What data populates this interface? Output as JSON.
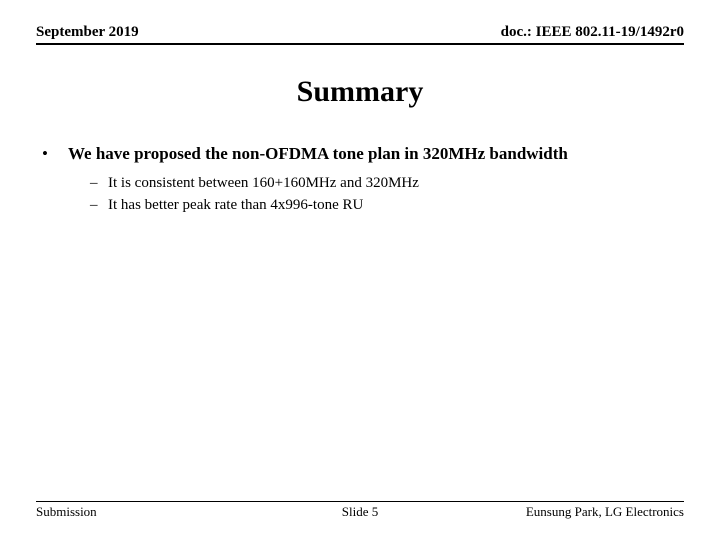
{
  "header": {
    "left": "September 2019",
    "right": "doc.: IEEE 802.11-19/1492r0"
  },
  "title": "Summary",
  "bullet": {
    "mark": "•",
    "text": "We have proposed the non-OFDMA tone plan in 320MHz bandwidth"
  },
  "subbullets": [
    {
      "mark": "–",
      "text": "It is consistent between 160+160MHz and 320MHz"
    },
    {
      "mark": "–",
      "text": "It has better peak rate than 4x996-tone RU"
    }
  ],
  "footer": {
    "left": "Submission",
    "center": "Slide 5",
    "right": "Eunsung Park, LG Electronics"
  },
  "colors": {
    "text": "#000000",
    "background": "#ffffff",
    "rule": "#000000"
  },
  "typography": {
    "family": "Times New Roman",
    "header_size_pt": 15,
    "title_size_pt": 30,
    "bullet_size_pt": 17,
    "subbullet_size_pt": 15,
    "footer_size_pt": 13
  }
}
